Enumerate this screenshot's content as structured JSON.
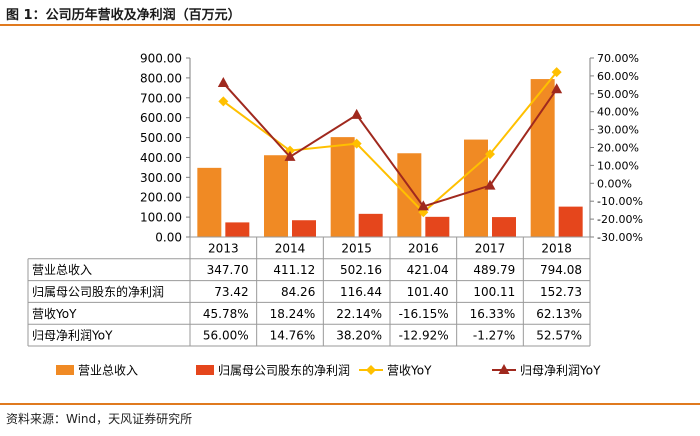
{
  "title": "图 1：公司历年营收及净利润（百万元）",
  "source": "资料来源：Wind，天风证券研究所",
  "chart_data": {
    "type": "bar",
    "categories": [
      "2013",
      "2014",
      "2015",
      "2016",
      "2017",
      "2018"
    ],
    "y_left_ticks": [
      "900.00",
      "800.00",
      "700.00",
      "600.00",
      "500.00",
      "400.00",
      "300.00",
      "200.00",
      "100.00",
      "0.00"
    ],
    "y_right_ticks": [
      "70.00%",
      "60.00%",
      "50.00%",
      "40.00%",
      "30.00%",
      "20.00%",
      "10.00%",
      "0.00%",
      "-10.00%",
      "-20.00%",
      "-30.00%"
    ],
    "ylim_left": [
      0,
      900
    ],
    "ylim_right": [
      -30,
      70
    ],
    "series": [
      {
        "name": "营业总收入",
        "type": "bar",
        "axis": "left",
        "color": "#f08a24",
        "values": [
          347.7,
          411.12,
          502.16,
          421.04,
          489.79,
          794.08
        ],
        "labels": [
          "347.70",
          "411.12",
          "502.16",
          "421.04",
          "489.79",
          "794.08"
        ]
      },
      {
        "name": "归属母公司股东的净利润",
        "type": "bar",
        "axis": "left",
        "color": "#e5461c",
        "values": [
          73.42,
          84.26,
          116.44,
          101.4,
          100.11,
          152.73
        ],
        "labels": [
          "73.42",
          "84.26",
          "116.44",
          "101.40",
          "100.11",
          "152.73"
        ]
      },
      {
        "name": "营收YoY",
        "type": "line",
        "axis": "right",
        "color": "#ffc000",
        "marker": "diamond",
        "values": [
          45.78,
          18.24,
          22.14,
          -16.15,
          16.33,
          62.13
        ],
        "labels": [
          "45.78%",
          "18.24%",
          "22.14%",
          "-16.15%",
          "16.33%",
          "62.13%"
        ]
      },
      {
        "name": "归母净利润YoY",
        "type": "line",
        "axis": "right",
        "color": "#a0291e",
        "marker": "triangle",
        "values": [
          56.0,
          14.76,
          38.2,
          -12.92,
          -1.27,
          52.57
        ],
        "labels": [
          "56.00%",
          "14.76%",
          "38.20%",
          "-12.92%",
          "-1.27%",
          "52.57%"
        ]
      }
    ],
    "table_row_labels": [
      "营业总收入",
      "归属母公司股东的净利润",
      "营收YoY",
      "归母净利润YoY"
    ],
    "legend": [
      "营业总收入",
      "归属母公司股东的净利润",
      "营收YoY",
      "归母净利润YoY"
    ]
  }
}
